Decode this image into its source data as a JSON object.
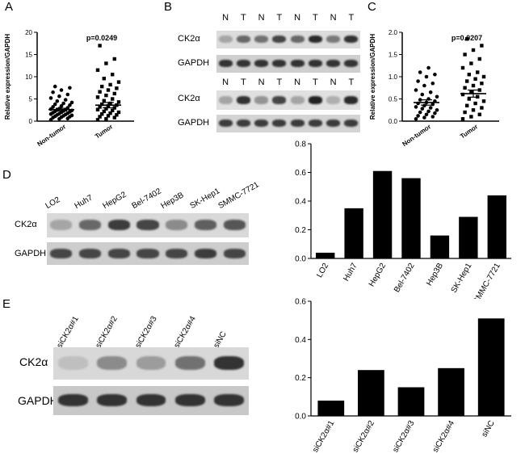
{
  "panels": {
    "a": "A",
    "b": "B",
    "c": "C",
    "d": "D",
    "e": "E"
  },
  "blot_b": {
    "lanes": [
      "N",
      "T",
      "N",
      "T",
      "N",
      "T",
      "N",
      "T"
    ],
    "rows": [
      "CK2α",
      "GAPDH",
      "CK2α",
      "GAPDH"
    ],
    "band_intensity_top_ck2": [
      0.2,
      0.55,
      0.5,
      0.75,
      0.55,
      0.9,
      0.45,
      0.85
    ],
    "band_intensity_bottom_ck2": [
      0.2,
      0.85,
      0.3,
      0.75,
      0.2,
      0.95,
      0.15,
      0.9
    ]
  },
  "blot_d": {
    "lanes": [
      "LO2",
      "Huh7",
      "HepG2",
      "Bel-7402",
      "Hep3B",
      "SK-Hep1",
      "SMMC-7721"
    ],
    "rows": [
      "CK2α",
      "GAPDH"
    ],
    "band_intensity_ck2": [
      0.2,
      0.55,
      0.8,
      0.75,
      0.35,
      0.6,
      0.65
    ]
  },
  "blot_e": {
    "lanes": [
      "siCK2α#1",
      "siCK2α#2",
      "siCK2α#3",
      "siCK2α#4",
      "siNC"
    ],
    "rows": [
      "CK2α",
      "GAPDH"
    ],
    "band_intensity_ck2": [
      0.05,
      0.35,
      0.25,
      0.5,
      0.85
    ]
  },
  "chart_data": [
    {
      "type": "scatter",
      "panel": "A",
      "categories": [
        "Non-tumor",
        "Tumor"
      ],
      "ylabel": "Relative expression/GAPDH",
      "ylim": [
        0,
        20
      ],
      "yticks": [
        0,
        5,
        10,
        15,
        20
      ],
      "annotation": "p=0.0249",
      "series": [
        {
          "values": [
            0.3,
            0.5,
            0.6,
            0.8,
            0.9,
            1.0,
            1.1,
            1.2,
            1.3,
            1.4,
            1.5,
            1.6,
            1.7,
            1.8,
            1.9,
            2.0,
            2.1,
            2.2,
            2.3,
            2.4,
            2.5,
            2.6,
            2.7,
            2.8,
            3.0,
            3.2,
            3.4,
            3.6,
            3.8,
            4.0,
            4.2,
            4.5,
            4.8,
            5.2,
            5.6,
            6.0,
            6.5,
            7.0,
            7.5,
            7.8
          ],
          "mean": 2.6,
          "sem": 0.3
        },
        {
          "values": [
            0.3,
            0.5,
            0.8,
            1.0,
            1.2,
            1.4,
            1.6,
            1.8,
            2.0,
            2.2,
            2.4,
            2.6,
            2.8,
            3.0,
            3.2,
            3.4,
            3.6,
            3.8,
            4.0,
            4.3,
            4.6,
            5.0,
            5.4,
            5.8,
            6.2,
            6.6,
            7.0,
            7.4,
            7.8,
            8.2,
            8.8,
            9.6,
            10.5,
            11.5,
            13.0,
            14.0,
            17.0
          ],
          "mean": 3.6,
          "sem": 0.6
        }
      ]
    },
    {
      "type": "scatter",
      "panel": "C",
      "categories": [
        "Non-tumor",
        "Tumor"
      ],
      "ylabel": "Relative expression/GAPDH",
      "ylim": [
        0,
        2.0
      ],
      "yticks": [
        "0.0",
        "0.5",
        "1.0",
        "1.5",
        "2.0"
      ],
      "annotation": "p=0.0207",
      "series": [
        {
          "values": [
            0.05,
            0.08,
            0.1,
            0.12,
            0.15,
            0.18,
            0.2,
            0.22,
            0.25,
            0.28,
            0.3,
            0.32,
            0.35,
            0.38,
            0.4,
            0.42,
            0.45,
            0.48,
            0.5,
            0.55,
            0.6,
            0.65,
            0.7,
            0.8,
            0.85,
            0.9,
            1.0,
            1.05,
            1.1,
            1.2
          ],
          "mean": 0.42,
          "sem": 0.06
        },
        {
          "values": [
            0.05,
            0.1,
            0.15,
            0.2,
            0.25,
            0.3,
            0.35,
            0.4,
            0.45,
            0.5,
            0.55,
            0.6,
            0.65,
            0.7,
            0.75,
            0.8,
            0.85,
            0.9,
            0.95,
            1.0,
            1.05,
            1.1,
            1.2,
            1.3,
            1.4,
            1.5,
            1.6,
            1.7,
            1.85
          ],
          "mean": 0.62,
          "sem": 0.08
        }
      ]
    },
    {
      "type": "bar",
      "panel": "D",
      "categories": [
        "LO2",
        "Huh7",
        "HepG2",
        "Bel-7402",
        "Hep3B",
        "SK-Hep1",
        "SMMC-7721"
      ],
      "values": [
        0.04,
        0.35,
        0.61,
        0.56,
        0.16,
        0.29,
        0.44
      ],
      "ylim": [
        0,
        0.8
      ],
      "yticks": [
        "0.0",
        "0.2",
        "0.4",
        "0.6",
        "0.8"
      ]
    },
    {
      "type": "bar",
      "panel": "E",
      "categories": [
        "siCK2α#1",
        "siCK2α#2",
        "siCK2α#3",
        "siCK2α#4",
        "siNC"
      ],
      "values": [
        0.08,
        0.24,
        0.15,
        0.25,
        0.51
      ],
      "ylim": [
        0,
        0.6
      ],
      "yticks": [
        "0.0",
        "0.2",
        "0.4",
        "0.6"
      ]
    }
  ]
}
